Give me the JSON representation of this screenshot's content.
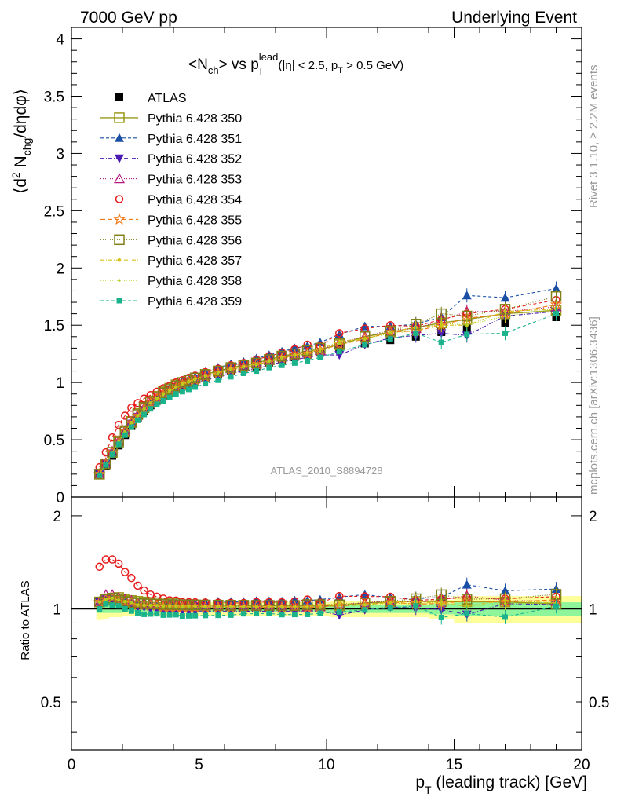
{
  "header": {
    "left": "7000 GeV pp",
    "right": "Underlying Event"
  },
  "title": {
    "prefix": "<N",
    "sub1": "ch",
    "mid": "> vs p",
    "sup": "lead",
    "sub2": "T",
    "cut_a": " (|η| < 2.5, p",
    "cut_sub": "T",
    "cut_b": " > 0.5 GeV)"
  },
  "watermark": "ATLAS_2010_S8894728",
  "side_text": {
    "rivet": "Rivet 3.1.10, ≥ 2.2M events",
    "mcplots": "mcplots.cern.ch [arXiv:1306.3436]"
  },
  "axes": {
    "ylabel_main": "⟨d² N_chg/dηdφ⟩",
    "ylabel_ratio": "Ratio to ATLAS",
    "xlabel": "p_T (leading track) [GeV]"
  },
  "chart_data": {
    "type": "scatter",
    "x": [
      1.1,
      1.35,
      1.6,
      1.85,
      2.1,
      2.35,
      2.6,
      2.85,
      3.1,
      3.35,
      3.6,
      3.85,
      4.1,
      4.35,
      4.6,
      4.85,
      5.25,
      5.75,
      6.25,
      6.75,
      7.25,
      7.75,
      8.25,
      8.75,
      9.25,
      9.75,
      10.5,
      11.5,
      12.5,
      13.5,
      14.5,
      15.5,
      17.0,
      19.0
    ],
    "xlim": [
      0,
      20
    ],
    "ylim_main": [
      0,
      4.1
    ],
    "ylim_ratio": [
      0.35,
      2.3
    ],
    "x_ticks": [
      "0",
      "5",
      "10",
      "15",
      "20"
    ],
    "y_ticks_main": [
      "0",
      "0.5",
      "1",
      "1.5",
      "2",
      "2.5",
      "3",
      "3.5",
      "4"
    ],
    "y_ticks_ratio": [
      "0.5",
      "1",
      "2"
    ],
    "reference": {
      "name": "ATLAS",
      "values": [
        0.19,
        0.27,
        0.36,
        0.45,
        0.54,
        0.62,
        0.69,
        0.75,
        0.8,
        0.84,
        0.88,
        0.91,
        0.94,
        0.97,
        0.99,
        1.01,
        1.04,
        1.07,
        1.1,
        1.12,
        1.14,
        1.17,
        1.2,
        1.22,
        1.24,
        1.26,
        1.3,
        1.34,
        1.37,
        1.4,
        1.44,
        1.47,
        1.52,
        1.57
      ],
      "band_outer": [
        0.08,
        0.07,
        0.06,
        0.06,
        0.05,
        0.05,
        0.05,
        0.05,
        0.05,
        0.05,
        0.05,
        0.05,
        0.05,
        0.05,
        0.05,
        0.05,
        0.05,
        0.05,
        0.05,
        0.05,
        0.05,
        0.05,
        0.05,
        0.05,
        0.05,
        0.05,
        0.06,
        0.06,
        0.06,
        0.06,
        0.07,
        0.1,
        0.1,
        0.1
      ],
      "band_inner": [
        0.03,
        0.03,
        0.03,
        0.03,
        0.02,
        0.02,
        0.02,
        0.02,
        0.02,
        0.02,
        0.02,
        0.02,
        0.02,
        0.02,
        0.02,
        0.02,
        0.02,
        0.02,
        0.02,
        0.02,
        0.02,
        0.02,
        0.02,
        0.02,
        0.02,
        0.02,
        0.03,
        0.03,
        0.03,
        0.03,
        0.04,
        0.05,
        0.05,
        0.05
      ]
    },
    "series": [
      {
        "name": "Pythia 6.428 350",
        "color": "#99991a",
        "marker": "square-open",
        "dash": "",
        "width": 1.4,
        "values": [
          0.2,
          0.29,
          0.39,
          0.49,
          0.58,
          0.66,
          0.73,
          0.79,
          0.84,
          0.88,
          0.92,
          0.95,
          0.98,
          1.0,
          1.02,
          1.04,
          1.07,
          1.1,
          1.13,
          1.15,
          1.17,
          1.2,
          1.23,
          1.25,
          1.27,
          1.29,
          1.33,
          1.4,
          1.44,
          1.48,
          1.52,
          1.55,
          1.6,
          1.63
        ]
      },
      {
        "name": "Pythia 6.428 351",
        "color": "#1a4fa6",
        "marker": "triangle-up",
        "dash": "4,3",
        "width": 1.1,
        "values": [
          0.2,
          0.29,
          0.39,
          0.48,
          0.58,
          0.66,
          0.72,
          0.78,
          0.83,
          0.87,
          0.91,
          0.95,
          0.98,
          1.01,
          1.03,
          1.05,
          1.09,
          1.13,
          1.16,
          1.18,
          1.21,
          1.24,
          1.27,
          1.3,
          1.32,
          1.35,
          1.42,
          1.49,
          1.49,
          1.51,
          1.57,
          1.76,
          1.74,
          1.82
        ]
      },
      {
        "name": "Pythia 6.428 352",
        "color": "#4b1ab3",
        "marker": "triangle-down",
        "dash": "5,2,1,2",
        "width": 1.1,
        "values": [
          0.2,
          0.29,
          0.38,
          0.47,
          0.56,
          0.64,
          0.7,
          0.76,
          0.8,
          0.84,
          0.87,
          0.9,
          0.92,
          0.95,
          0.97,
          0.99,
          1.02,
          1.05,
          1.08,
          1.1,
          1.12,
          1.15,
          1.18,
          1.2,
          1.22,
          1.24,
          1.24,
          1.33,
          1.39,
          1.41,
          1.43,
          1.41,
          1.58,
          1.62
        ]
      },
      {
        "name": "Pythia 6.428 353",
        "color": "#b31a7f",
        "marker": "triangle-up-open",
        "dash": "1,2",
        "width": 1.1,
        "values": [
          0.2,
          0.3,
          0.4,
          0.49,
          0.58,
          0.66,
          0.72,
          0.78,
          0.83,
          0.87,
          0.9,
          0.93,
          0.96,
          0.99,
          1.01,
          1.03,
          1.06,
          1.09,
          1.12,
          1.14,
          1.16,
          1.19,
          1.22,
          1.24,
          1.26,
          1.28,
          1.35,
          1.4,
          1.46,
          1.47,
          1.54,
          1.62,
          1.62,
          1.66
        ]
      },
      {
        "name": "Pythia 6.428 354",
        "color": "#e61a1a",
        "marker": "circle-open",
        "dash": "4,3",
        "width": 1.1,
        "values": [
          0.26,
          0.39,
          0.52,
          0.63,
          0.71,
          0.78,
          0.82,
          0.86,
          0.89,
          0.92,
          0.95,
          0.97,
          1.0,
          1.02,
          1.04,
          1.06,
          1.09,
          1.12,
          1.15,
          1.17,
          1.2,
          1.23,
          1.26,
          1.29,
          1.33,
          1.32,
          1.43,
          1.47,
          1.5,
          1.49,
          1.55,
          1.6,
          1.64,
          1.72
        ]
      },
      {
        "name": "Pythia 6.428 355",
        "color": "#f07a1a",
        "marker": "star-open",
        "dash": "6,3",
        "width": 1.1,
        "values": [
          0.2,
          0.29,
          0.39,
          0.48,
          0.57,
          0.65,
          0.71,
          0.77,
          0.82,
          0.86,
          0.89,
          0.92,
          0.95,
          0.98,
          1.0,
          1.02,
          1.05,
          1.08,
          1.11,
          1.13,
          1.16,
          1.18,
          1.21,
          1.24,
          1.25,
          1.28,
          1.33,
          1.38,
          1.44,
          1.45,
          1.5,
          1.56,
          1.6,
          1.68
        ]
      },
      {
        "name": "Pythia 6.428 356",
        "color": "#80801a",
        "marker": "square-open",
        "dash": "1,2",
        "width": 1.2,
        "values": [
          0.2,
          0.29,
          0.39,
          0.48,
          0.57,
          0.65,
          0.72,
          0.78,
          0.83,
          0.87,
          0.91,
          0.94,
          0.97,
          1.0,
          1.02,
          1.04,
          1.07,
          1.1,
          1.13,
          1.15,
          1.17,
          1.2,
          1.23,
          1.25,
          1.28,
          1.3,
          1.34,
          1.4,
          1.45,
          1.51,
          1.6,
          1.58,
          1.64,
          1.75
        ]
      },
      {
        "name": "Pythia 6.428 357",
        "color": "#d6c21a",
        "marker": "dot",
        "dash": "5,2,1,2",
        "width": 1.1,
        "values": [
          0.2,
          0.29,
          0.39,
          0.48,
          0.57,
          0.65,
          0.71,
          0.77,
          0.82,
          0.86,
          0.9,
          0.93,
          0.96,
          0.99,
          1.01,
          1.03,
          1.06,
          1.09,
          1.12,
          1.14,
          1.16,
          1.19,
          1.22,
          1.24,
          1.26,
          1.29,
          1.36,
          1.38,
          1.44,
          1.48,
          1.5,
          1.5,
          1.62,
          1.64
        ]
      },
      {
        "name": "Pythia 6.428 358",
        "color": "#b3cc1a",
        "marker": "dot-small",
        "dash": "1,2",
        "width": 1.1,
        "values": [
          0.2,
          0.29,
          0.39,
          0.48,
          0.57,
          0.65,
          0.71,
          0.77,
          0.82,
          0.86,
          0.89,
          0.92,
          0.95,
          0.98,
          1.0,
          1.02,
          1.05,
          1.08,
          1.11,
          1.13,
          1.15,
          1.18,
          1.21,
          1.23,
          1.25,
          1.27,
          1.34,
          1.38,
          1.43,
          1.45,
          1.52,
          1.5,
          1.58,
          1.64
        ]
      },
      {
        "name": "Pythia 6.428 359",
        "color": "#1ab38c",
        "marker": "square-small",
        "dash": "4,3",
        "width": 1.1,
        "values": [
          0.19,
          0.28,
          0.37,
          0.46,
          0.54,
          0.61,
          0.67,
          0.72,
          0.77,
          0.81,
          0.84,
          0.87,
          0.9,
          0.92,
          0.94,
          0.96,
          0.99,
          1.02,
          1.05,
          1.08,
          1.1,
          1.13,
          1.15,
          1.17,
          1.19,
          1.22,
          1.27,
          1.33,
          1.38,
          1.43,
          1.35,
          1.42,
          1.43,
          1.6
        ]
      }
    ]
  }
}
